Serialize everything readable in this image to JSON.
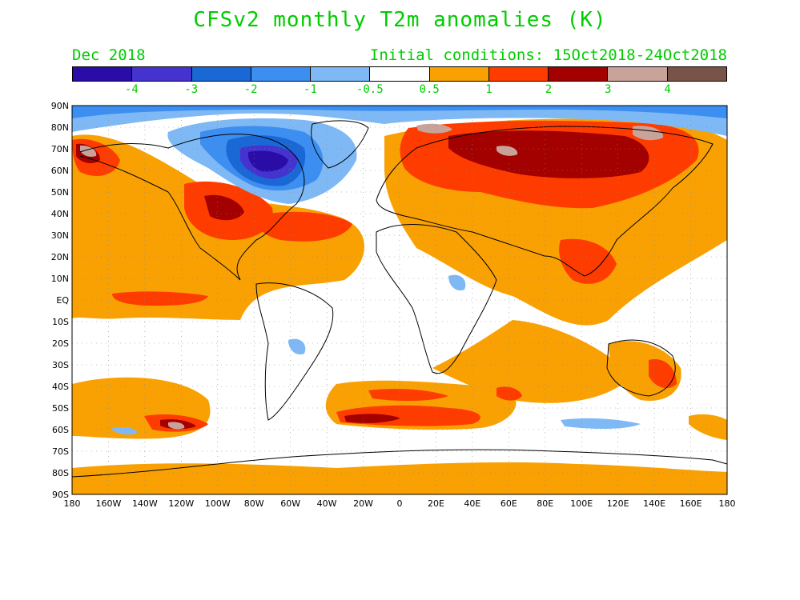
{
  "title": "CFSv2 monthly T2m anomalies (K)",
  "month_label": "Dec 2018",
  "init_label": "Initial conditions: 15Oct2018-24Oct2018",
  "colors": {
    "text_green": "#00cc00",
    "land_outline": "#000000"
  },
  "colorbar": {
    "segments": [
      "#2a0da6",
      "#4533d0",
      "#1a68d6",
      "#3c8ef0",
      "#7fb9f5",
      "#ffffff",
      "#f9a102",
      "#ff3c00",
      "#a30000",
      "#c9a39a",
      "#7a5348"
    ],
    "labels": [
      "-4",
      "-3",
      "-2",
      "-1",
      "-0.5",
      "0.5",
      "1",
      "2",
      "3",
      "4"
    ]
  },
  "map": {
    "lat_labels": [
      "90N",
      "80N",
      "70N",
      "60N",
      "50N",
      "40N",
      "30N",
      "20N",
      "10N",
      "EQ",
      "10S",
      "20S",
      "30S",
      "40S",
      "50S",
      "60S",
      "70S",
      "80S",
      "90S"
    ],
    "lon_labels": [
      "180",
      "160W",
      "140W",
      "120W",
      "100W",
      "80W",
      "60W",
      "40W",
      "20W",
      "0",
      "20E",
      "40E",
      "60E",
      "80E",
      "100E",
      "120E",
      "140E",
      "160E",
      "180"
    ]
  }
}
